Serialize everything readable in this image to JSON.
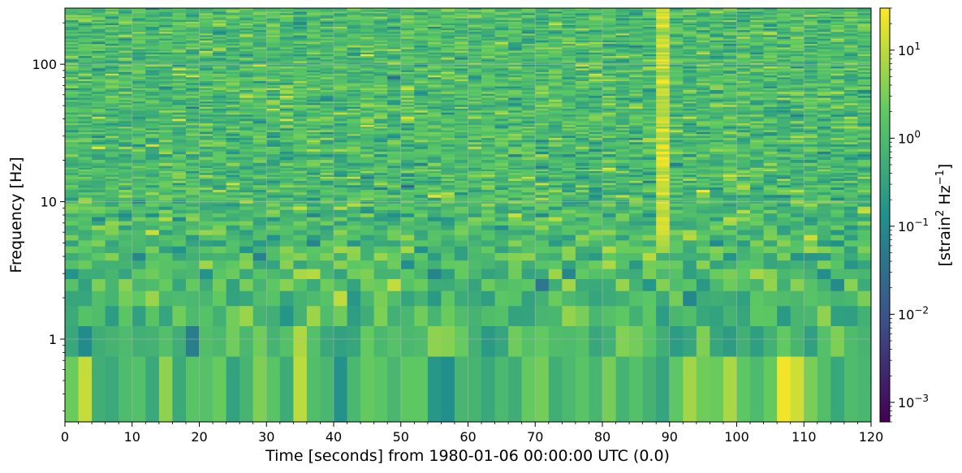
{
  "chart_data": {
    "type": "heatmap",
    "title": "",
    "xlabel": "Time [seconds] from 1980-01-06 00:00:00 UTC (0.0)",
    "ylabel": "Frequency [Hz]",
    "colorbar_label_parts": [
      "[strain",
      "2",
      " Hz",
      "−1",
      "]"
    ],
    "colormap": "viridis",
    "colormap_colors": [
      "#440154",
      "#3b528b",
      "#21918c",
      "#5ec962",
      "#fde725"
    ],
    "x_range": [
      0,
      120
    ],
    "x_ticks": [
      "0",
      "10",
      "20",
      "30",
      "40",
      "50",
      "60",
      "70",
      "80",
      "90",
      "100",
      "110",
      "120"
    ],
    "y_scale": "log",
    "y_range": [
      0.25,
      256
    ],
    "y_ticks": [
      "1",
      "10",
      "100"
    ],
    "color_scale": "log",
    "color_range": [
      0.0006,
      30
    ],
    "colorbar_ticks": [
      {
        "base": "10",
        "exp": "−3"
      },
      {
        "base": "10",
        "exp": "−2"
      },
      {
        "base": "10",
        "exp": "−1"
      },
      {
        "base": "10",
        "exp": "0"
      },
      {
        "base": "10",
        "exp": "1"
      }
    ],
    "time_bin_seconds": 2,
    "frequency_resolution_hz": 0.5,
    "typical_value": 1.0,
    "annotations": [
      {
        "feature": "broadband excess power",
        "time_range": [
          88,
          91
        ],
        "frequency_range": [
          5,
          256
        ],
        "approx_value": 10
      },
      {
        "feature": "low-frequency excess",
        "time_range": [
          106,
          110
        ],
        "frequency_range": [
          0.25,
          0.75
        ],
        "approx_value": 10
      }
    ],
    "grid": true,
    "legend": "colorbar-right"
  }
}
